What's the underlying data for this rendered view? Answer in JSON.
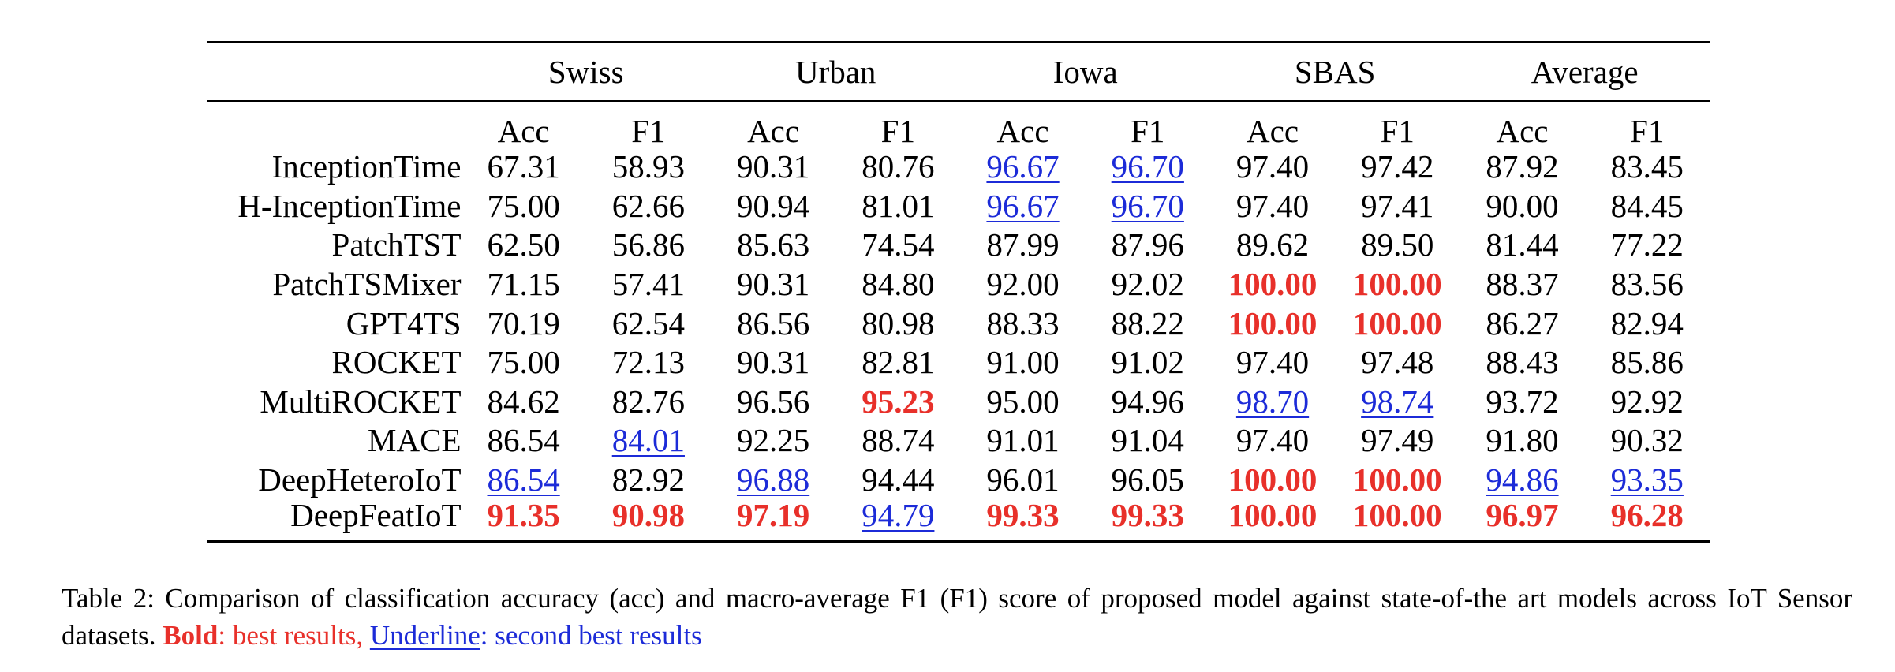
{
  "table": {
    "datasets": [
      "Swiss",
      "Urban",
      "Iowa",
      "SBAS",
      "Average"
    ],
    "metrics": [
      "Acc",
      "F1"
    ],
    "rows": [
      {
        "model": "InceptionTime",
        "values": [
          "67.31",
          "58.93",
          "90.31",
          "80.76",
          "96.67",
          "96.70",
          "97.40",
          "97.42",
          "87.92",
          "83.45"
        ],
        "styles": [
          "",
          "",
          "",
          "",
          "second",
          "second",
          "",
          "",
          "",
          ""
        ]
      },
      {
        "model": "H-InceptionTime",
        "values": [
          "75.00",
          "62.66",
          "90.94",
          "81.01",
          "96.67",
          "96.70",
          "97.40",
          "97.41",
          "90.00",
          "84.45"
        ],
        "styles": [
          "",
          "",
          "",
          "",
          "second",
          "second",
          "",
          "",
          "",
          ""
        ]
      },
      {
        "model": "PatchTST",
        "values": [
          "62.50",
          "56.86",
          "85.63",
          "74.54",
          "87.99",
          "87.96",
          "89.62",
          "89.50",
          "81.44",
          "77.22"
        ],
        "styles": [
          "",
          "",
          "",
          "",
          "",
          "",
          "",
          "",
          "",
          ""
        ]
      },
      {
        "model": "PatchTSMixer",
        "values": [
          "71.15",
          "57.41",
          "90.31",
          "84.80",
          "92.00",
          "92.02",
          "100.00",
          "100.00",
          "88.37",
          "83.56"
        ],
        "styles": [
          "",
          "",
          "",
          "",
          "",
          "",
          "best",
          "best",
          "",
          ""
        ]
      },
      {
        "model": "GPT4TS",
        "values": [
          "70.19",
          "62.54",
          "86.56",
          "80.98",
          "88.33",
          "88.22",
          "100.00",
          "100.00",
          "86.27",
          "82.94"
        ],
        "styles": [
          "",
          "",
          "",
          "",
          "",
          "",
          "best",
          "best",
          "",
          ""
        ]
      },
      {
        "model": "ROCKET",
        "values": [
          "75.00",
          "72.13",
          "90.31",
          "82.81",
          "91.00",
          "91.02",
          "97.40",
          "97.48",
          "88.43",
          "85.86"
        ],
        "styles": [
          "",
          "",
          "",
          "",
          "",
          "",
          "",
          "",
          "",
          ""
        ]
      },
      {
        "model": "MultiROCKET",
        "values": [
          "84.62",
          "82.76",
          "96.56",
          "95.23",
          "95.00",
          "94.96",
          "98.70",
          "98.74",
          "93.72",
          "92.92"
        ],
        "styles": [
          "",
          "",
          "",
          "best",
          "",
          "",
          "second",
          "second",
          "",
          ""
        ]
      },
      {
        "model": "MACE",
        "values": [
          "86.54",
          "84.01",
          "92.25",
          "88.74",
          "91.01",
          "91.04",
          "97.40",
          "97.49",
          "91.80",
          "90.32"
        ],
        "styles": [
          "",
          "second",
          "",
          "",
          "",
          "",
          "",
          "",
          "",
          ""
        ]
      },
      {
        "model": "DeepHeteroIoT",
        "values": [
          "86.54",
          "82.92",
          "96.88",
          "94.44",
          "96.01",
          "96.05",
          "100.00",
          "100.00",
          "94.86",
          "93.35"
        ],
        "styles": [
          "second",
          "",
          "second",
          "",
          "",
          "",
          "best",
          "best",
          "second",
          "second"
        ]
      },
      {
        "model": "DeepFeatIoT",
        "proposed": true,
        "values": [
          "91.35",
          "90.98",
          "97.19",
          "94.79",
          "99.33",
          "99.33",
          "100.00",
          "100.00",
          "96.97",
          "96.28"
        ],
        "styles": [
          "best",
          "best",
          "best",
          "second",
          "best",
          "best",
          "best",
          "best",
          "best",
          "best"
        ]
      }
    ]
  },
  "caption": {
    "text": "Table 2: Comparison of classification accuracy (acc) and macro-average F1 (F1) score of proposed model against state-of-the art models across IoT Sensor datasets.",
    "bold_label": "Bold",
    "bold_desc": ": best results,",
    "underline_label": "Underline",
    "underline_desc": ": second best results"
  },
  "colors": {
    "best": "#e8302a",
    "second_best": "#1c2bd8"
  }
}
